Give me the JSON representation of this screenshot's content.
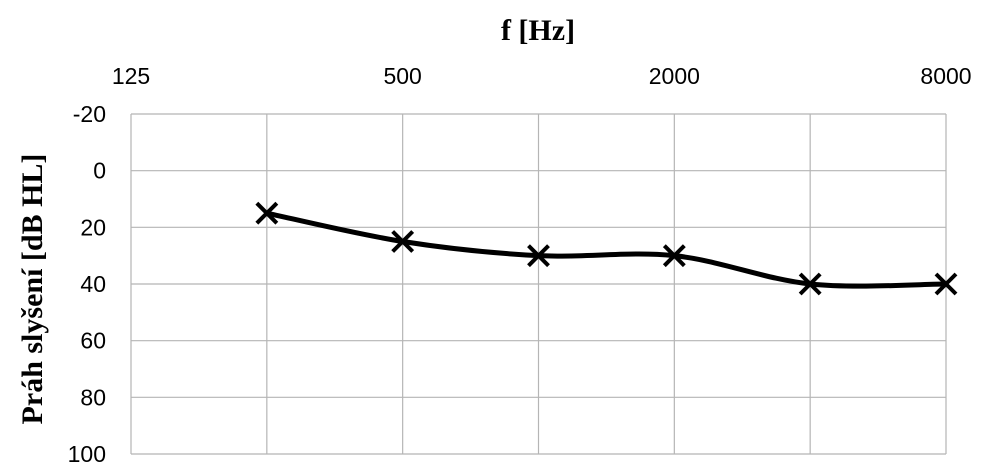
{
  "chart_data": {
    "type": "line",
    "title": "",
    "xlabel": "f [Hz]",
    "ylabel": "Práh slyšení [dB HL]",
    "x_scale": "log2",
    "x_axis_position": "top",
    "x_ticks": [
      125,
      500,
      2000,
      8000
    ],
    "x_gridlines": [
      125,
      250,
      500,
      1000,
      2000,
      4000,
      8000
    ],
    "xlim": [
      125,
      8000
    ],
    "y_reversed": true,
    "ylim": [
      -20,
      100
    ],
    "y_ticks": [
      -20,
      0,
      20,
      40,
      60,
      80,
      100
    ],
    "grid": true,
    "legend": "none",
    "series": [
      {
        "x": [
          250,
          500,
          1000,
          2000,
          4000,
          8000
        ],
        "y": [
          15,
          25,
          30,
          30,
          40,
          40
        ],
        "marker": "x",
        "color": "#000000"
      }
    ]
  }
}
